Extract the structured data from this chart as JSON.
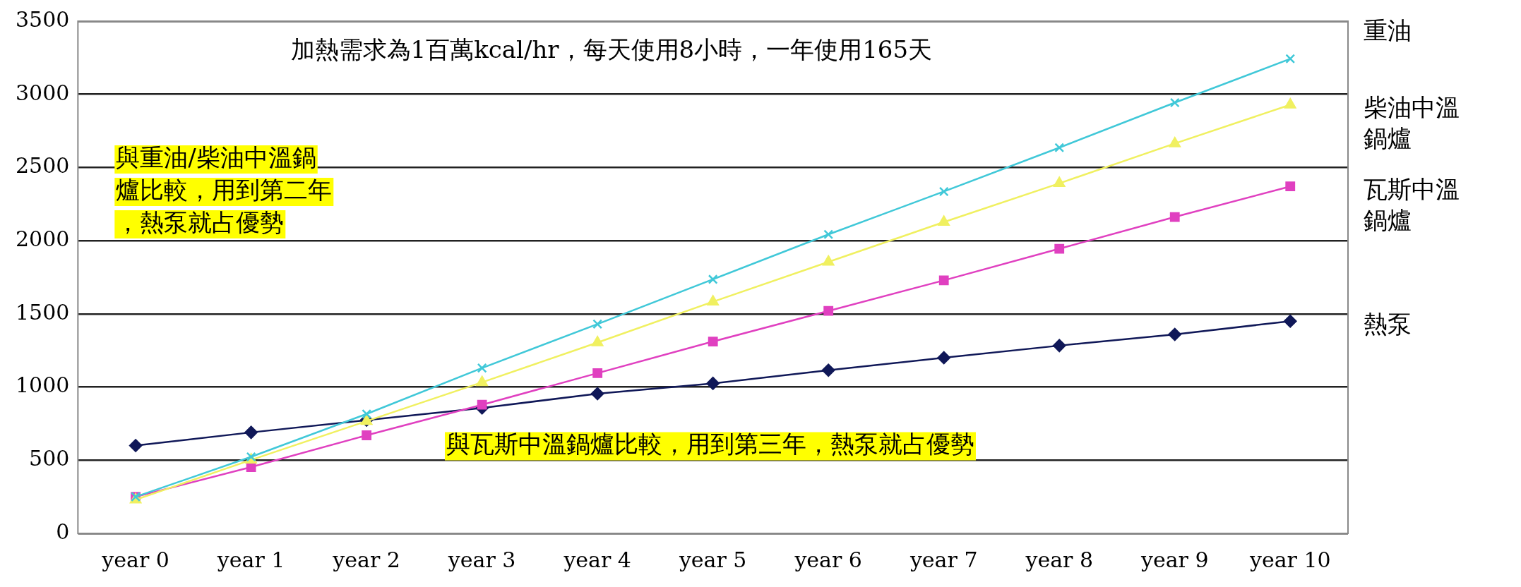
{
  "chart_data": {
    "type": "line",
    "categories": [
      "year 0",
      "year 1",
      "year 2",
      "year 3",
      "year 4",
      "year 5",
      "year 6",
      "year 7",
      "year 8",
      "year 9",
      "year 10"
    ],
    "series": [
      {
        "name": "重油",
        "color": "#40c8d8",
        "marker": "cross",
        "values": [
          250,
          523,
          816,
          1130,
          1430,
          1736,
          2043,
          2336,
          2636,
          2943,
          3243
        ]
      },
      {
        "name": "柴油中溫鍋爐",
        "color": "#f0f060",
        "marker": "triangle",
        "values": [
          230,
          502,
          767,
          1032,
          1304,
          1583,
          1855,
          2127,
          2392,
          2664,
          2929
        ]
      },
      {
        "name": "瓦斯中溫鍋爐",
        "color": "#e040c0",
        "marker": "square",
        "values": [
          250,
          453,
          670,
          879,
          1095,
          1311,
          1520,
          1729,
          1945,
          2162,
          2371
        ]
      },
      {
        "name": "熱泵",
        "color": "#101858",
        "marker": "diamond",
        "values": [
          600,
          690,
          774,
          857,
          955,
          1025,
          1115,
          1200,
          1283,
          1360,
          1450
        ]
      }
    ],
    "ylim": [
      0,
      3500
    ],
    "yticks": [
      0,
      500,
      1000,
      1500,
      2000,
      2500,
      3000,
      3500
    ],
    "grid": "y",
    "legend": false,
    "annotations": [
      "加熱需求為1百萬kcal/hr，每天使用8小時，一年使用165天",
      "與重油/柴油中溫鍋爐比較，用到第二年，熱泵就占優勢",
      "與瓦斯中溫鍋爐比較，用到第三年，熱泵就占優勢"
    ]
  }
}
